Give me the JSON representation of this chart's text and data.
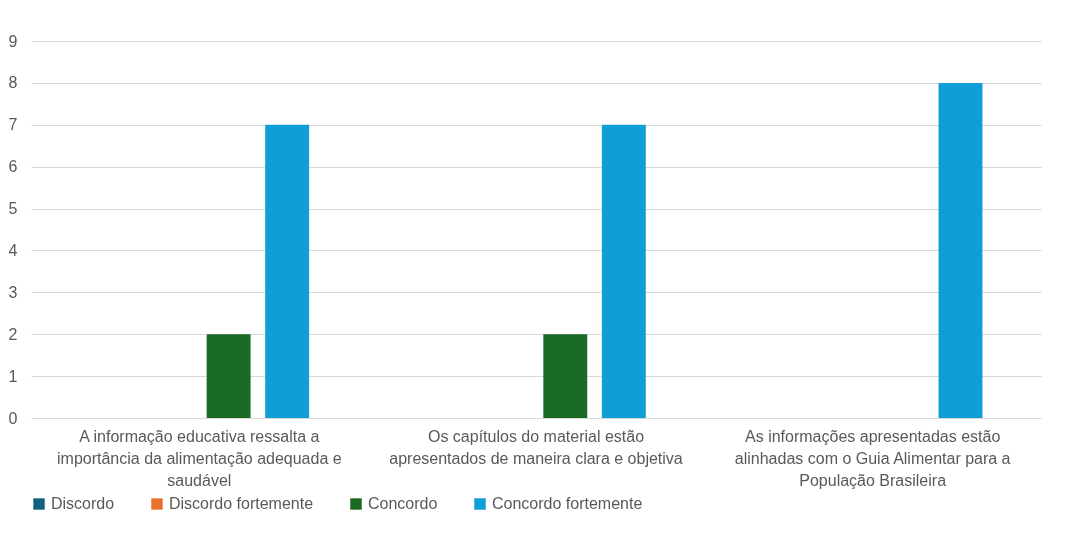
{
  "chart_data": {
    "type": "bar",
    "categories": [
      "A informação educativa ressalta a importância da alimentação adequada e saudável",
      "Os capítulos do material estão apresentados de maneira clara e objetiva",
      "As informações apresentadas estão alinhadas com o Guia Alimentar para a População Brasileira"
    ],
    "series": [
      {
        "name": "Discordo",
        "color": "#156082",
        "values": [
          0,
          0,
          0
        ]
      },
      {
        "name": "Discordo fortemente",
        "color": "#e97132",
        "values": [
          0,
          0,
          0
        ]
      },
      {
        "name": "Concordo",
        "color": "#196b24",
        "values": [
          2,
          2,
          0
        ]
      },
      {
        "name": "Concordo fortemente",
        "color": "#0f9ed5",
        "values": [
          7,
          7,
          8
        ]
      }
    ],
    "ylim": [
      0,
      9
    ],
    "yticks": [
      0,
      1,
      2,
      3,
      4,
      5,
      6,
      7,
      8,
      9
    ],
    "grid": "y",
    "legend": "bottom"
  }
}
